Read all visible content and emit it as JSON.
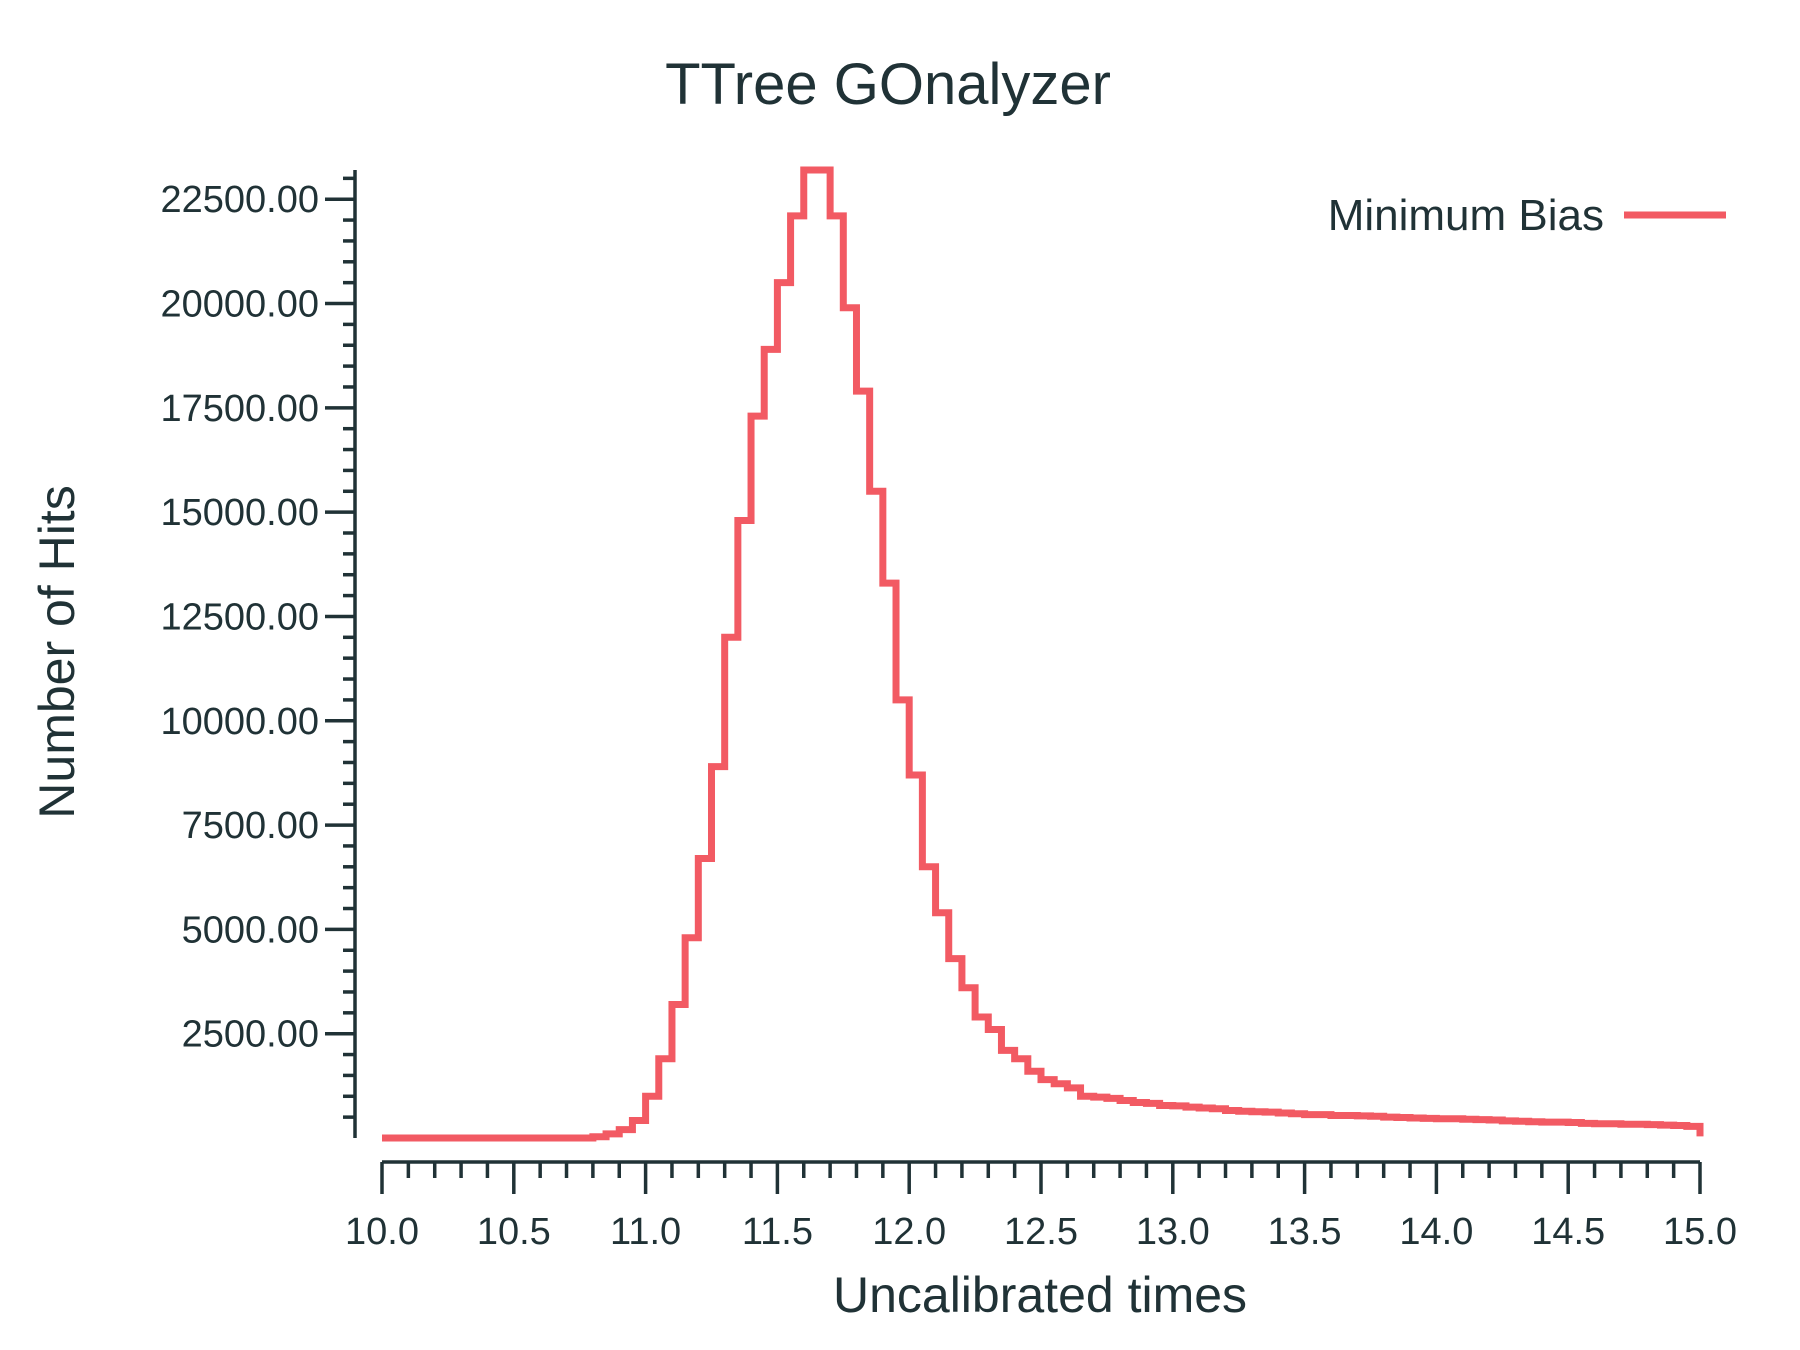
{
  "chart_data": {
    "type": "line",
    "title": "TTree GOnalyzer",
    "xlabel": "Uncalibrated times",
    "ylabel": "Number of Hits",
    "xlim": [
      10.0,
      15.0
    ],
    "ylim": [
      0,
      23200
    ],
    "x_ticks": [
      "10.0",
      "10.5",
      "11.0",
      "11.5",
      "12.0",
      "12.5",
      "13.0",
      "13.5",
      "14.0",
      "14.5",
      "15.0"
    ],
    "y_ticks": [
      "2500.00",
      "5000.00",
      "7500.00",
      "10000.00",
      "12500.00",
      "15000.00",
      "17500.00",
      "20000.00",
      "22500.00"
    ],
    "grid": false,
    "legend_position": "top-right",
    "colors": {
      "series": "#f25a63",
      "axis": "#203236"
    },
    "bin_width": 0.05,
    "series": [
      {
        "name": "Minimum Bias",
        "x": [
          10.0,
          10.05,
          10.1,
          10.15,
          10.2,
          10.25,
          10.3,
          10.35,
          10.4,
          10.45,
          10.5,
          10.55,
          10.6,
          10.65,
          10.7,
          10.75,
          10.8,
          10.85,
          10.9,
          10.95,
          11.0,
          11.05,
          11.1,
          11.15,
          11.2,
          11.25,
          11.3,
          11.35,
          11.4,
          11.45,
          11.5,
          11.55,
          11.6,
          11.65,
          11.7,
          11.75,
          11.8,
          11.85,
          11.9,
          11.95,
          12.0,
          12.05,
          12.1,
          12.15,
          12.2,
          12.25,
          12.3,
          12.35,
          12.4,
          12.45,
          12.5,
          12.55,
          12.6,
          12.65,
          12.7,
          12.75,
          12.8,
          12.85,
          12.9,
          12.95,
          13.0,
          13.05,
          13.1,
          13.15,
          13.2,
          13.25,
          13.3,
          13.35,
          13.4,
          13.45,
          13.5,
          13.55,
          13.6,
          13.65,
          13.7,
          13.75,
          13.8,
          13.85,
          13.9,
          13.95,
          14.0,
          14.05,
          14.1,
          14.15,
          14.2,
          14.25,
          14.3,
          14.35,
          14.4,
          14.45,
          14.5,
          14.55,
          14.6,
          14.65,
          14.7,
          14.75,
          14.8,
          14.85,
          14.9,
          14.95
        ],
        "values": [
          0,
          0,
          0,
          0,
          0,
          0,
          0,
          0,
          0,
          0,
          0,
          0,
          0,
          0,
          0,
          0,
          30,
          100,
          200,
          420,
          1000,
          1900,
          3200,
          4800,
          6700,
          8900,
          12000,
          14800,
          17300,
          18900,
          20500,
          22100,
          23200,
          23200,
          22100,
          19900,
          17900,
          15500,
          13300,
          10500,
          8700,
          6500,
          5400,
          4300,
          3600,
          2900,
          2600,
          2100,
          1900,
          1600,
          1400,
          1300,
          1200,
          1000,
          980,
          950,
          900,
          850,
          830,
          780,
          770,
          740,
          720,
          700,
          660,
          640,
          630,
          620,
          600,
          580,
          560,
          560,
          540,
          540,
          530,
          520,
          500,
          490,
          480,
          470,
          460,
          460,
          450,
          440,
          430,
          410,
          400,
          390,
          380,
          380,
          370,
          350,
          340,
          340,
          330,
          330,
          320,
          310,
          300,
          280
        ]
      }
    ]
  }
}
